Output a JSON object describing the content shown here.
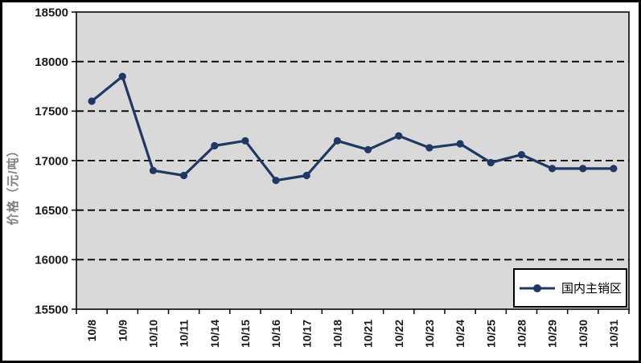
{
  "figure": {
    "colors": {
      "line": "#1f3864",
      "plot_bg": "#d9d9d9",
      "plot_border": "#333333",
      "grid": "#000000",
      "tick_text": "#1a1a1a",
      "axis_title": "#7f7f7f",
      "frame": "#000000",
      "legend_bg": "#ffffff"
    }
  },
  "chart_data": {
    "type": "line",
    "title": "",
    "ylabel": "价格（元/吨）",
    "xlabel": "",
    "ylim": [
      15500,
      18500
    ],
    "y_ticks": [
      18500,
      18000,
      17500,
      17000,
      16500,
      16000,
      15500
    ],
    "grid": "horizontal-dashed",
    "legend_position": "bottom-right",
    "categories": [
      "10/8",
      "10/9",
      "10/10",
      "10/11",
      "10/14",
      "10/15",
      "10/16",
      "10/17",
      "10/18",
      "10/21",
      "10/22",
      "10/23",
      "10/24",
      "10/25",
      "10/28",
      "10/29",
      "10/30",
      "10/31"
    ],
    "series": [
      {
        "name": "国内主销区",
        "marker": "circle",
        "values": [
          17600,
          17850,
          16900,
          16850,
          17150,
          17200,
          16800,
          16850,
          17200,
          17110,
          17250,
          17130,
          17170,
          16980,
          17060,
          16920,
          16920,
          16920
        ]
      }
    ]
  }
}
